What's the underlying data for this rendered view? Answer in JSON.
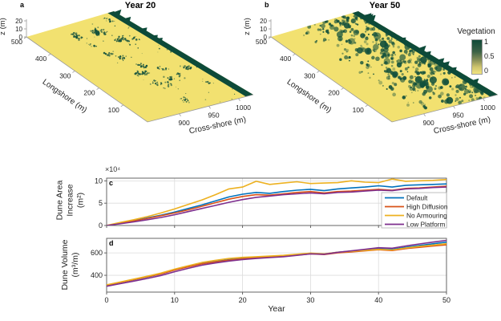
{
  "surface_panels": {
    "a": {
      "letter": "a",
      "title": "Year 20",
      "z_label": "z (m)",
      "z_ticks": [
        "0",
        "10",
        "20"
      ],
      "longshore_label": "Longshore (m)",
      "longshore_ticks": [
        "500",
        "400",
        "300",
        "200",
        "100"
      ],
      "cross_shore_label": "Cross-shore (m)",
      "cross_shore_ticks": [
        "900",
        "950",
        "1000"
      ],
      "vegetation_density": "sparse"
    },
    "b": {
      "letter": "b",
      "title": "Year 50",
      "z_label": "z (m)",
      "z_ticks": [
        "0",
        "10",
        "20"
      ],
      "longshore_label": "Longshore (m)",
      "longshore_ticks": [
        "500",
        "400",
        "300",
        "200",
        "100"
      ],
      "cross_shore_label": "Cross-shore (m)",
      "cross_shore_ticks": [
        "900",
        "950",
        "1000"
      ],
      "vegetation_density": "dense"
    }
  },
  "colorbar": {
    "title": "Vegetation",
    "tick_labels": [
      "1",
      "0.5",
      "0"
    ],
    "color_high": "#114a38",
    "color_low": "#f2e57e"
  },
  "colors": {
    "sand": "#f2e170",
    "vegetation_dark": "#12503c",
    "axis": "#555555",
    "grid": "#dcdcdc"
  },
  "chart_data": [
    {
      "type": "line",
      "panel": "c",
      "ylabel": "Dune Area Increase (m²)",
      "ylabel_lines": [
        "Dune Area",
        "Increase",
        "(m²)"
      ],
      "y_multiplier": "×10⁴",
      "xlabel": "",
      "xlim": [
        0,
        50
      ],
      "ylim": [
        0,
        10.6
      ],
      "xticks": [
        0,
        10,
        20,
        30,
        40,
        50
      ],
      "yticks": [
        0,
        5,
        10
      ],
      "show_x_tick_labels": false,
      "grid": true,
      "legend_position": "lower right",
      "x": [
        0,
        2,
        4,
        6,
        8,
        10,
        12,
        14,
        16,
        18,
        20,
        22,
        24,
        26,
        28,
        30,
        32,
        34,
        36,
        38,
        40,
        42,
        44,
        46,
        48,
        50
      ],
      "series": [
        {
          "name": "Default",
          "color": "#0072BD",
          "values": [
            0,
            0.5,
            1.1,
            1.7,
            2.3,
            3.0,
            3.8,
            4.6,
            5.5,
            6.4,
            7.0,
            7.4,
            7.2,
            7.6,
            7.9,
            8.1,
            7.8,
            8.2,
            8.4,
            8.6,
            8.9,
            8.6,
            9.0,
            9.1,
            9.2,
            9.3
          ]
        },
        {
          "name": "High Diffusion",
          "color": "#D95319",
          "values": [
            0,
            0.5,
            1.0,
            1.6,
            2.2,
            2.8,
            3.5,
            4.3,
            5.1,
            5.9,
            6.5,
            6.9,
            6.8,
            7.1,
            7.4,
            7.6,
            7.3,
            7.6,
            7.7,
            7.9,
            8.1,
            7.9,
            8.3,
            8.4,
            8.6,
            8.8
          ]
        },
        {
          "name": "No Armouring",
          "color": "#EDB120",
          "values": [
            0,
            0.7,
            1.3,
            2.0,
            2.8,
            3.7,
            4.7,
            5.7,
            6.9,
            8.2,
            8.6,
            9.9,
            9.2,
            9.5,
            9.8,
            9.4,
            9.5,
            9.6,
            10.0,
            9.7,
            9.6,
            10.4,
            9.9,
            10.0,
            10.1,
            10.3
          ]
        },
        {
          "name": "Low Platform",
          "color": "#7E2F8E",
          "values": [
            0,
            0.4,
            0.8,
            1.3,
            1.8,
            2.4,
            3.1,
            3.8,
            4.5,
            5.2,
            5.8,
            6.3,
            6.6,
            6.9,
            7.1,
            7.3,
            7.1,
            7.4,
            7.5,
            7.7,
            7.9,
            7.8,
            8.2,
            8.3,
            8.5,
            8.6
          ]
        }
      ]
    },
    {
      "type": "line",
      "panel": "d",
      "ylabel": "Dune Volume (m³/m)",
      "ylabel_lines": [
        "Dune Volume",
        "(m³/m)"
      ],
      "y_multiplier": "",
      "xlabel": "Year",
      "xlim": [
        0,
        50
      ],
      "ylim": [
        250,
        730
      ],
      "xticks": [
        0,
        10,
        20,
        30,
        40,
        50
      ],
      "yticks": [
        400,
        600
      ],
      "show_x_tick_labels": true,
      "grid": true,
      "legend_position": "none",
      "x": [
        0,
        2,
        4,
        6,
        8,
        10,
        12,
        14,
        16,
        18,
        20,
        22,
        24,
        26,
        28,
        30,
        32,
        34,
        36,
        38,
        40,
        42,
        44,
        46,
        48,
        50
      ],
      "series": [
        {
          "name": "Default",
          "color": "#0072BD",
          "values": [
            312,
            336,
            360,
            385,
            412,
            448,
            478,
            505,
            524,
            540,
            552,
            560,
            566,
            573,
            584,
            596,
            590,
            606,
            616,
            626,
            637,
            631,
            650,
            666,
            681,
            696
          ]
        },
        {
          "name": "High Diffusion",
          "color": "#D95319",
          "values": [
            313,
            337,
            361,
            386,
            412,
            447,
            476,
            502,
            520,
            536,
            548,
            556,
            562,
            569,
            580,
            592,
            585,
            600,
            609,
            618,
            628,
            621,
            638,
            650,
            661,
            672
          ]
        },
        {
          "name": "No Armouring",
          "color": "#EDB120",
          "values": [
            315,
            340,
            366,
            392,
            420,
            455,
            486,
            514,
            534,
            550,
            560,
            566,
            572,
            578,
            588,
            598,
            592,
            606,
            614,
            622,
            632,
            626,
            644,
            658,
            670,
            682
          ]
        },
        {
          "name": "Low Platform",
          "color": "#7E2F8E",
          "values": [
            302,
            325,
            348,
            372,
            398,
            432,
            462,
            490,
            510,
            527,
            540,
            550,
            558,
            566,
            578,
            592,
            588,
            605,
            618,
            632,
            646,
            642,
            662,
            680,
            696,
            712
          ]
        }
      ]
    }
  ]
}
